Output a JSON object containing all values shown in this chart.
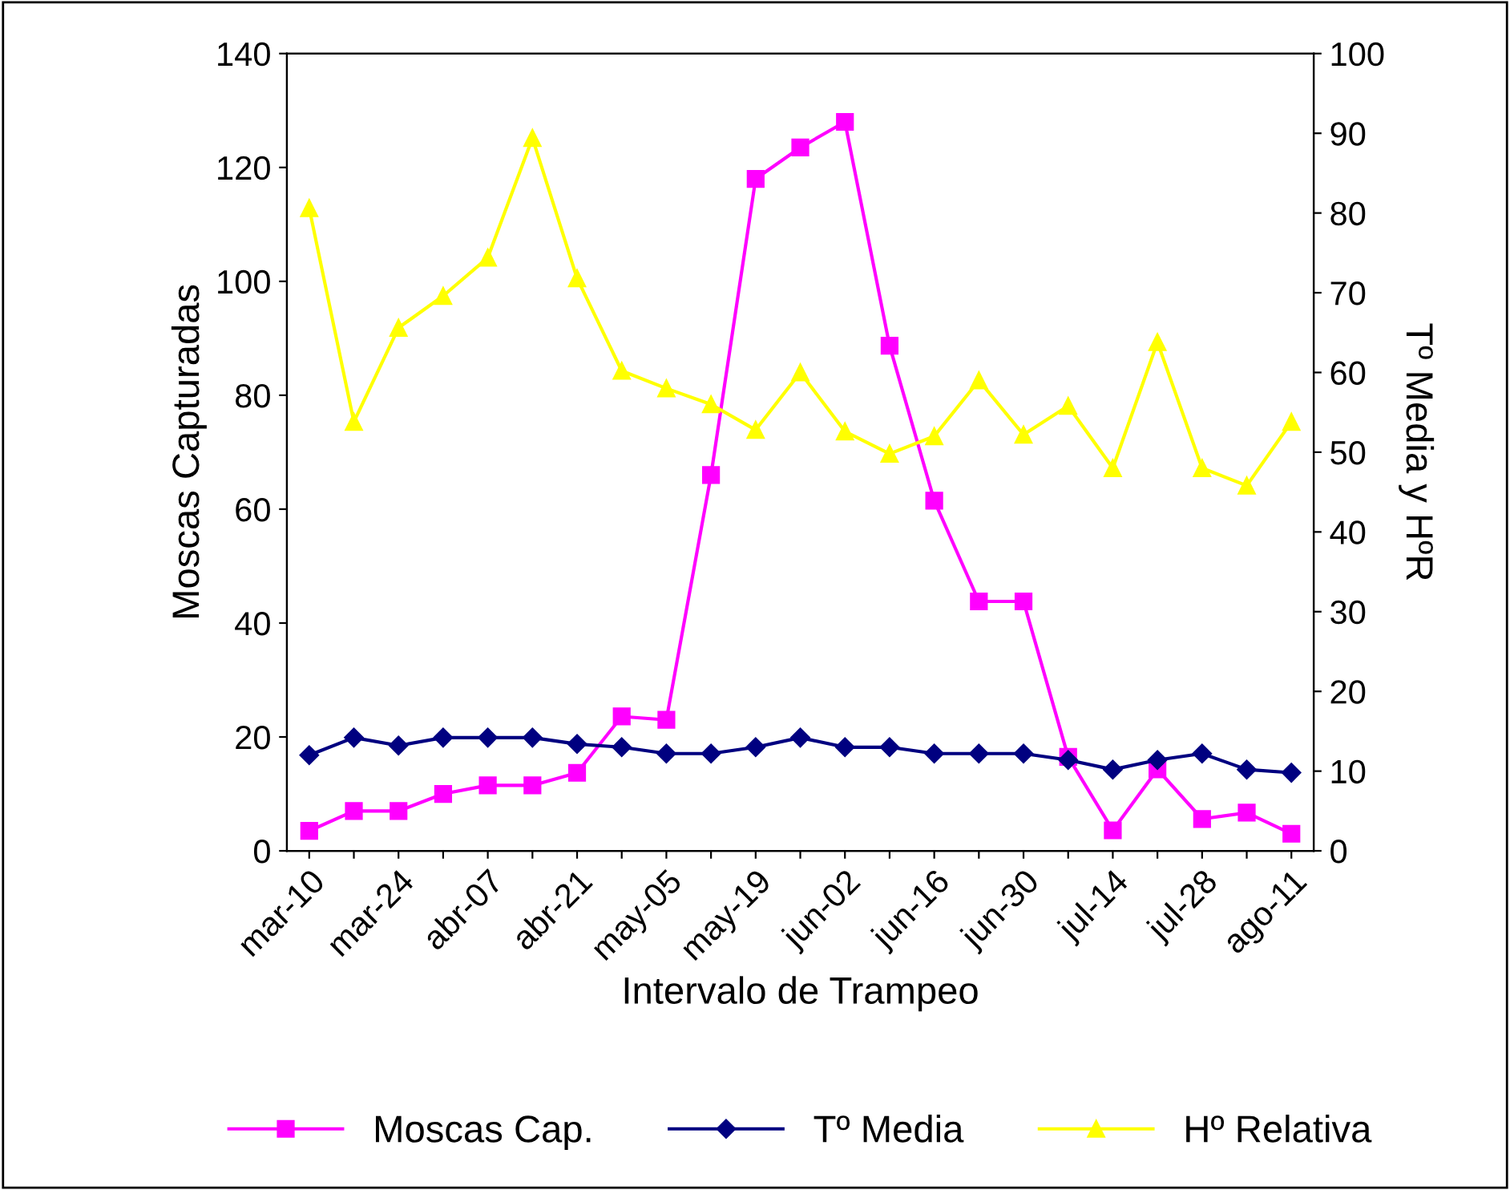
{
  "chart_data": {
    "type": "line",
    "xlabel": "Intervalo de Trampeo",
    "ylabel": "Moscas Capturadas",
    "y2label": "Tº Media y HºR",
    "categories": [
      "mar-10",
      null,
      "mar-24",
      null,
      "abr-07",
      null,
      "abr-21",
      null,
      "may-05",
      null,
      "may-19",
      null,
      "jun-02",
      null,
      "jun-16",
      null,
      "jun-30",
      null,
      "jul-14",
      null,
      "jul-28",
      null,
      "ago-11"
    ],
    "series": [
      {
        "name": "Moscas Cap.",
        "color": "#ff00ff",
        "marker": "square",
        "values": [
          3.5,
          7,
          7,
          10,
          11.5,
          11.5,
          13.7,
          23.6,
          23,
          66,
          118,
          123.5,
          128,
          88.7,
          61.5,
          43.8,
          43.8,
          16.5,
          3.6,
          14.3,
          5.6,
          6.7,
          3
        ]
      },
      {
        "name": "Tº Media",
        "color": "#000080",
        "marker": "diamond",
        "axis": "y2",
        "values": [
          12,
          14.2,
          13.2,
          14.2,
          14.2,
          14.2,
          13.4,
          13,
          12.2,
          12.2,
          13,
          14.2,
          13,
          13,
          12.2,
          12.2,
          12.2,
          11.4,
          10.2,
          11.4,
          12.2,
          10.2,
          9.8
        ]
      },
      {
        "name": "Hº Relativa",
        "color": "#ffff00",
        "marker": "triangle",
        "axis": "y2",
        "values": [
          80.6,
          53.8,
          65.6,
          69.6,
          74.4,
          89.4,
          71.8,
          60.2,
          58,
          56,
          52.8,
          60,
          52.6,
          49.8,
          52,
          59,
          52.2,
          55.8,
          48,
          63.8,
          48,
          45.8,
          53.8
        ]
      }
    ],
    "ylim": [
      0,
      140
    ],
    "yticks": [
      0,
      20,
      40,
      60,
      80,
      100,
      120,
      140
    ],
    "y2lim": [
      0,
      100
    ],
    "y2ticks": [
      0,
      10,
      20,
      30,
      40,
      50,
      60,
      70,
      80,
      90,
      100
    ],
    "grid": false,
    "legend": "bottom"
  }
}
